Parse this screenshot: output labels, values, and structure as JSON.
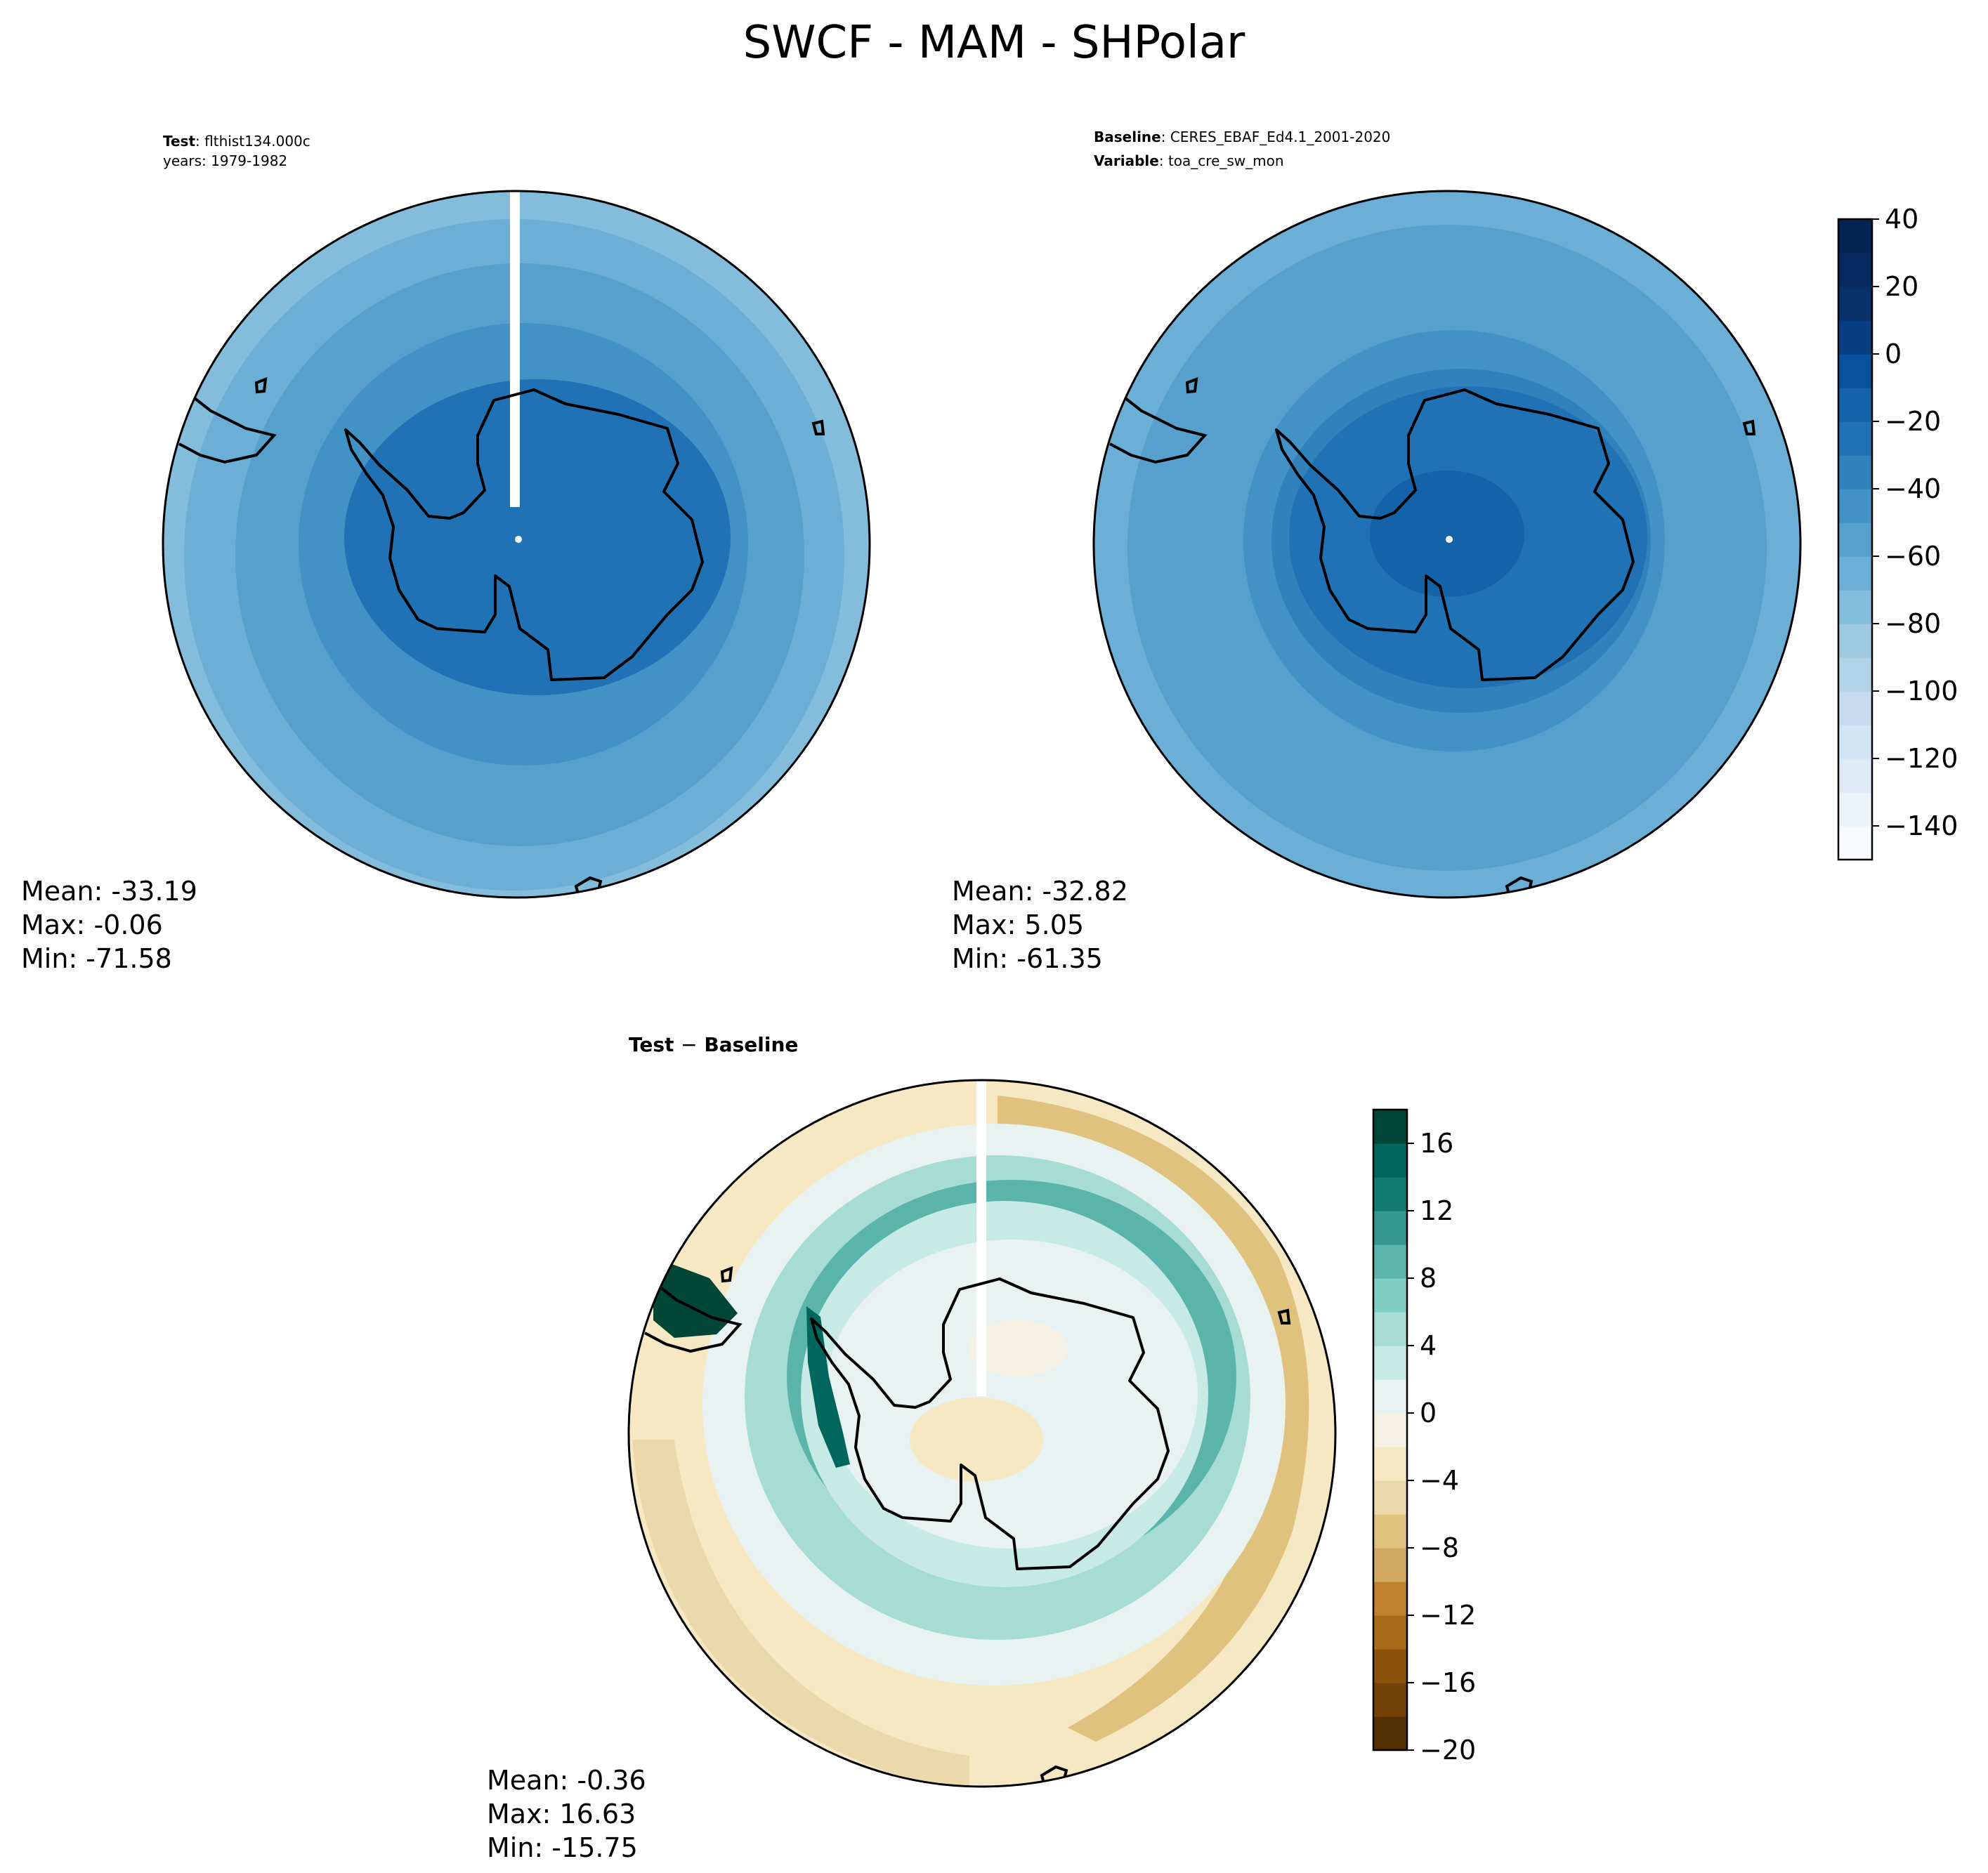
{
  "title": "SWCF - MAM - SHPolar",
  "panels": {
    "test": {
      "header": [
        {
          "key": "Test",
          "value": "flthist134.000c"
        },
        {
          "key": "",
          "value": "years: 1979-1982"
        }
      ],
      "stats": [
        "Mean: -33.19",
        "Max: -0.06",
        "Min: -71.58"
      ]
    },
    "baseline": {
      "header": [
        {
          "key": "Baseline",
          "value": "CERES_EBAF_Ed4.1_2001-2020"
        },
        {
          "key": "Variable",
          "value": "toa_cre_sw_mon"
        }
      ],
      "stats": [
        "Mean: -32.82",
        "Max:  5.05",
        "Min: -61.35"
      ]
    },
    "diff": {
      "header_left": "Test",
      "header_op": "−",
      "header_right": "Baseline",
      "stats": [
        "Mean: -0.36",
        "Max: 16.63",
        "Min: -15.75"
      ]
    }
  },
  "chart_data": [
    {
      "type": "heatmap",
      "name": "test-map",
      "projection": "south-polar-stereographic",
      "value_min": -71.58,
      "value_max": -0.06,
      "value_mean": -33.19
    },
    {
      "type": "heatmap",
      "name": "baseline-map",
      "projection": "south-polar-stereographic",
      "value_min": -61.35,
      "value_max": 5.05,
      "value_mean": -32.82,
      "colorbar": {
        "cmap": "Blues",
        "range": [
          -150,
          40
        ],
        "levels": [
          -150,
          -140,
          -130,
          -120,
          -110,
          -100,
          -90,
          -80,
          -70,
          -60,
          -50,
          -40,
          -30,
          -20,
          -10,
          0,
          10,
          20,
          30,
          40
        ],
        "ticks": [
          40,
          20,
          0,
          -20,
          -40,
          -60,
          -80,
          -100,
          -120,
          -140
        ],
        "tick_labels": [
          "40",
          "20",
          "0",
          "−20",
          "−40",
          "−60",
          "−80",
          "−100",
          "−120",
          "−140"
        ]
      }
    },
    {
      "type": "heatmap",
      "name": "difference-map",
      "projection": "south-polar-stereographic",
      "value_min": -15.75,
      "value_max": 16.63,
      "value_mean": -0.36,
      "colorbar": {
        "cmap": "BrBG",
        "range": [
          -20,
          18
        ],
        "levels": [
          -20,
          -18,
          -16,
          -14,
          -12,
          -10,
          -8,
          -6,
          -4,
          -2,
          0,
          2,
          4,
          6,
          8,
          10,
          12,
          14,
          16,
          18
        ],
        "ticks": [
          16,
          12,
          8,
          4,
          0,
          -4,
          -8,
          -12,
          -16,
          -20
        ],
        "tick_labels": [
          "16",
          "12",
          "8",
          "4",
          "0",
          "−4",
          "−8",
          "−12",
          "−16",
          "−20"
        ]
      }
    }
  ],
  "colors": {
    "blues": [
      "#f7fbff",
      "#ebf3fb",
      "#deebf7",
      "#d2e3f3",
      "#c6dbef",
      "#b2d2e8",
      "#9ecae1",
      "#84bcdb",
      "#6baed6",
      "#57a0ce",
      "#4292c6",
      "#3181bd",
      "#2171b5",
      "#1462a8",
      "#08519c",
      "#083e81",
      "#08306b",
      "#062a5f",
      "#042453"
    ],
    "brbg": [
      "#543005",
      "#734209",
      "#8c510a",
      "#a76b19",
      "#bf812d",
      "#d3a962",
      "#dfc27d",
      "#ecd9ab",
      "#f6e8c3",
      "#f5f1e4",
      "#e8f3f1",
      "#c7eae5",
      "#a6dcd4",
      "#80cdc1",
      "#5ab4a9",
      "#35978f",
      "#117a72",
      "#01665e",
      "#014636"
    ],
    "coast": "#000000"
  }
}
